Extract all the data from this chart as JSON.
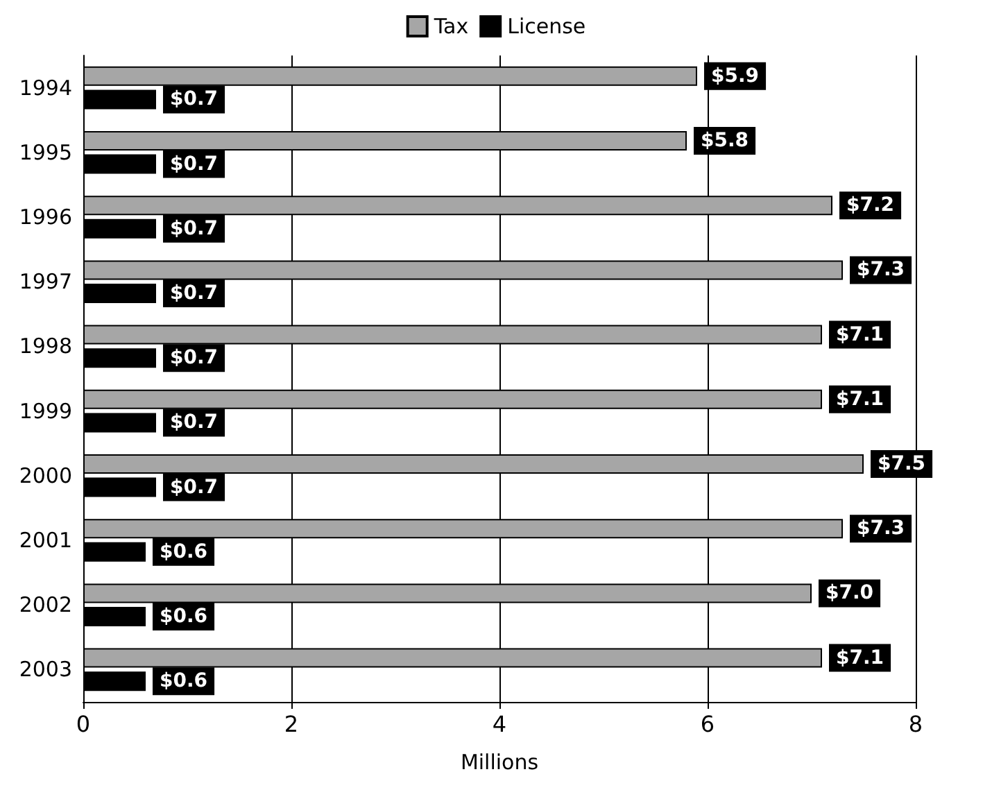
{
  "chart_data": {
    "type": "bar",
    "orientation": "horizontal",
    "xlabel": "Millions",
    "categories": [
      "1994",
      "1995",
      "1996",
      "1997",
      "1998",
      "1999",
      "2000",
      "2001",
      "2002",
      "2003"
    ],
    "series": [
      {
        "name": "Tax",
        "color": "#a6a6a6",
        "values": [
          5.9,
          5.8,
          7.2,
          7.3,
          7.1,
          7.1,
          7.5,
          7.3,
          7.0,
          7.1
        ],
        "value_labels": [
          "$5.9",
          "$5.8",
          "$7.2",
          "$7.3",
          "$7.1",
          "$7.1",
          "$7.5",
          "$7.3",
          "$7.0",
          "$7.1"
        ]
      },
      {
        "name": "License",
        "color": "#000000",
        "values": [
          0.7,
          0.7,
          0.7,
          0.7,
          0.7,
          0.7,
          0.7,
          0.6,
          0.6,
          0.6
        ],
        "value_labels": [
          "$0.7",
          "$0.7",
          "$0.7",
          "$0.7",
          "$0.7",
          "$0.7",
          "$0.7",
          "$0.6",
          "$0.6",
          "$0.6"
        ]
      }
    ],
    "xlim": [
      0,
      8
    ],
    "xticks": [
      0,
      2,
      4,
      6,
      8
    ],
    "grid": "x",
    "legend": "top"
  }
}
